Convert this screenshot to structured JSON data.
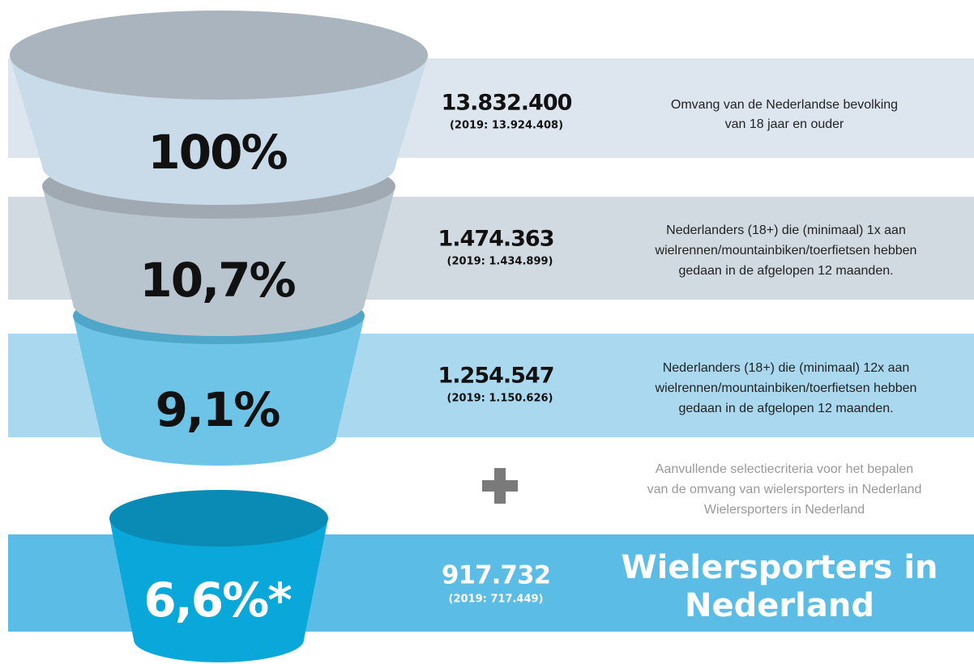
{
  "levels": [
    {
      "percent": "100%",
      "count": "13.832.400",
      "compare": "(2019: 13.924.408)",
      "description": [
        "Omvang van de Nederlandse bevolking",
        "van 18 jaar en ouder"
      ]
    },
    {
      "percent": "10,7%",
      "count": "1.474.363",
      "compare": "(2019: 1.434.899)",
      "description": [
        "Nederlanders (18+) die (minimaal) 1x aan",
        "wielrennen/mountainbiken/toerfietsen hebben",
        "gedaan in de afgelopen 12 maanden."
      ]
    },
    {
      "percent": "9,1%",
      "count": "1.254.547",
      "compare": "(2019: 1.150.626)",
      "description": [
        "Nederlanders (18+) die (minimaal) 12x aan",
        "wielrennen/mountainbiken/toerfietsen hebben",
        "gedaan in de afgelopen 12 maanden."
      ]
    },
    {
      "percent": "6,6%*",
      "count": "917.732",
      "compare": "(2019: 717.449)",
      "description": [
        "Wielersporters in",
        "Nederland"
      ]
    }
  ],
  "criteria": [
    "Aanvullende selectiecriteria voor het bepalen",
    "van de omvang van wielersporters in Nederland",
    "Wielersporters in Nederland"
  ]
}
